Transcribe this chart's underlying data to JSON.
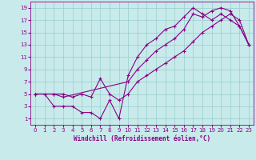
{
  "xlabel": "Windchill (Refroidissement éolien,°C)",
  "bg_color": "#c8eaea",
  "line_color": "#880088",
  "grid_color": "#99cccc",
  "xlim": [
    -0.5,
    23.5
  ],
  "ylim": [
    0,
    20
  ],
  "xticks": [
    0,
    1,
    2,
    3,
    4,
    5,
    6,
    7,
    8,
    9,
    10,
    11,
    12,
    13,
    14,
    15,
    16,
    17,
    18,
    19,
    20,
    21,
    22,
    23
  ],
  "yticks": [
    1,
    3,
    5,
    7,
    9,
    11,
    13,
    15,
    17,
    19
  ],
  "series1_x": [
    0,
    1,
    2,
    3,
    4,
    5,
    6,
    7,
    8,
    9,
    10,
    11,
    12,
    13,
    14,
    15,
    16,
    17,
    18,
    19,
    20,
    21,
    22,
    23
  ],
  "series1_y": [
    5,
    5,
    3,
    3,
    3,
    2,
    2,
    1,
    4,
    1,
    8,
    11,
    13,
    14,
    15.5,
    16,
    17.5,
    19,
    18,
    17,
    18,
    17,
    16,
    13
  ],
  "series2_x": [
    0,
    2,
    3,
    4,
    5,
    6,
    7,
    8,
    9,
    10,
    11,
    12,
    13,
    14,
    15,
    16,
    17,
    18,
    19,
    20,
    21,
    22,
    23
  ],
  "series2_y": [
    5,
    5,
    5,
    4.5,
    5,
    4.5,
    7.5,
    5,
    4,
    5,
    7,
    8,
    9,
    10,
    11,
    12,
    13.5,
    15,
    16,
    17,
    18,
    17,
    13
  ],
  "series3_x": [
    0,
    2,
    3,
    10,
    11,
    12,
    13,
    14,
    15,
    16,
    17,
    18,
    19,
    20,
    21,
    22,
    23
  ],
  "series3_y": [
    5,
    5,
    4.5,
    7,
    9,
    10.5,
    12,
    13,
    14,
    15.5,
    18,
    17.5,
    18.5,
    19,
    18.5,
    16,
    13
  ]
}
